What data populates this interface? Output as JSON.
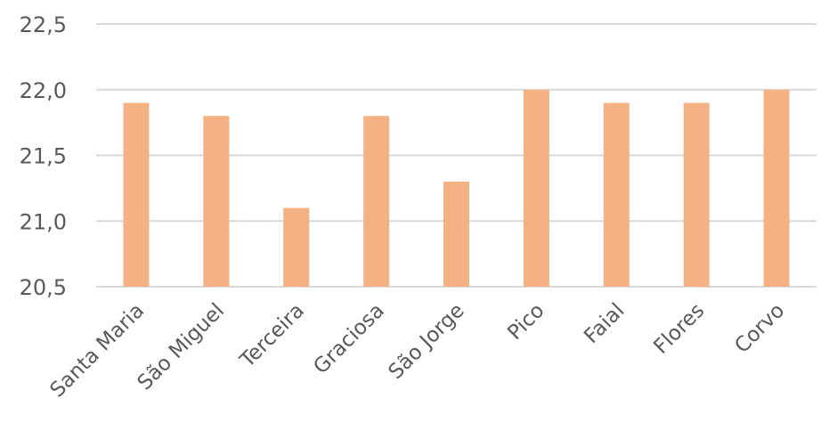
{
  "chart_data": {
    "type": "bar",
    "categories": [
      "Santa Maria",
      "São Miguel",
      "Terceira",
      "Graciosa",
      "São Jorge",
      "Pico",
      "Faial",
      "Flores",
      "Corvo"
    ],
    "values": [
      21.9,
      21.8,
      21.1,
      21.8,
      21.3,
      22.0,
      21.9,
      21.9,
      22.0
    ],
    "ylim": [
      20.5,
      22.5
    ],
    "yticks": [
      "20,5",
      "21,0",
      "21,5",
      "22,0",
      "22,5"
    ],
    "bar_color": "#f4b183",
    "grid": true,
    "title": "",
    "xlabel": "",
    "ylabel": ""
  }
}
